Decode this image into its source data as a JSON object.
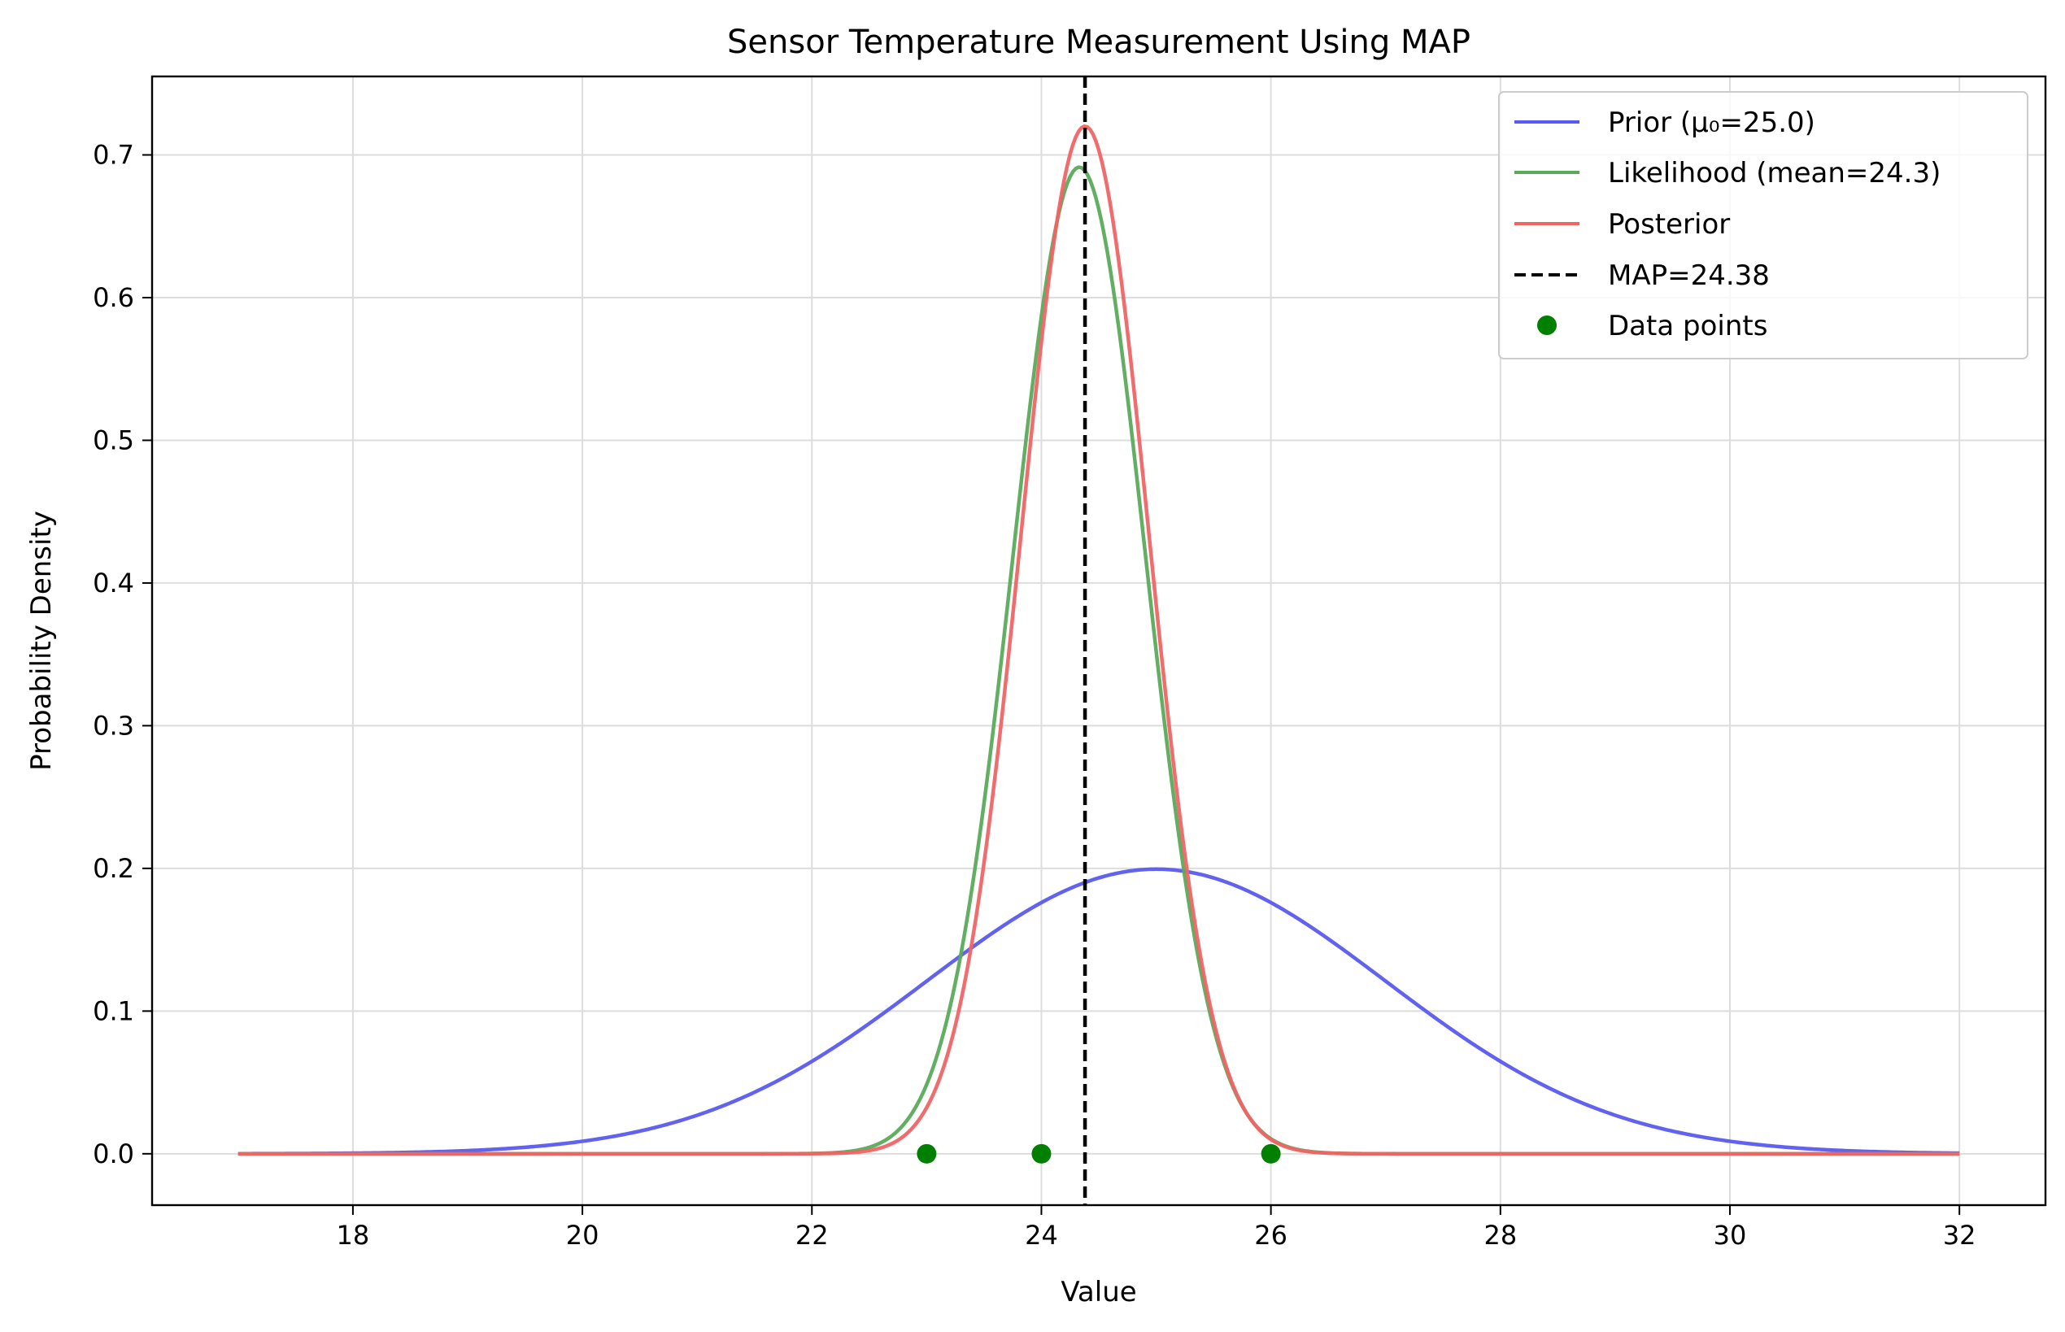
{
  "chart_data": {
    "type": "line",
    "title": "Sensor Temperature Measurement Using MAP",
    "xlabel": "Value",
    "ylabel": "Probability Density",
    "xlim": [
      16.25,
      32.75
    ],
    "ylim": [
      -0.036,
      0.755
    ],
    "x_ticks": [
      18,
      20,
      22,
      24,
      26,
      28,
      30,
      32
    ],
    "y_ticks": [
      0.0,
      0.1,
      0.2,
      0.3,
      0.4,
      0.5,
      0.6,
      0.7
    ],
    "x_tick_labels": [
      "18",
      "20",
      "22",
      "24",
      "26",
      "28",
      "30",
      "32"
    ],
    "y_tick_labels": [
      "0.0",
      "0.1",
      "0.2",
      "0.3",
      "0.4",
      "0.5",
      "0.6",
      "0.7"
    ],
    "grid": true,
    "legend_position": "top-right",
    "x_range": [
      17,
      32
    ],
    "series": [
      {
        "name": "Prior (μ₀=25.0)",
        "kind": "normal",
        "mean": 25.0,
        "std": 2.0,
        "color": "#5a5af0"
      },
      {
        "name": "Likelihood (mean=24.3)",
        "kind": "normal",
        "mean": 24.33,
        "std": 0.577,
        "color": "#5aaa5a"
      },
      {
        "name": "Posterior",
        "kind": "normal",
        "mean": 24.38,
        "std": 0.554,
        "color": "#f06464"
      }
    ],
    "map_line": {
      "name": "MAP=24.38",
      "x": 24.38,
      "color": "#000000"
    },
    "data_points": {
      "name": "Data points",
      "x": [
        23,
        24,
        26
      ],
      "y": [
        0,
        0,
        0
      ],
      "color": "#008000"
    }
  }
}
